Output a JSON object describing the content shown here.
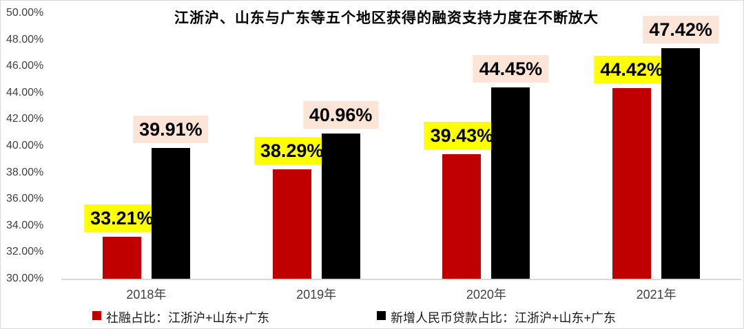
{
  "title": "江浙沪、山东与广东等五个地区获得的融资支持力度在不断放大",
  "chart_data": {
    "type": "bar",
    "title": "江浙沪、山东与广东等五个地区获得的融资支持力度在不断放大",
    "categories": [
      "2018年",
      "2019年",
      "2020年",
      "2021年"
    ],
    "series": [
      {
        "name": "社融占比：江浙沪+山东+广东",
        "color": "#c00000",
        "label_bg": "#ffff00",
        "values": [
          33.21,
          38.29,
          39.43,
          44.42
        ],
        "labels": [
          "33.21%",
          "38.29%",
          "39.43%",
          "44.42%"
        ]
      },
      {
        "name": "新增人民币贷款占比：江浙沪+山东+广东",
        "color": "#000000",
        "label_bg": "#fce4d6",
        "values": [
          39.91,
          40.96,
          44.45,
          47.42
        ],
        "labels": [
          "39.91%",
          "40.96%",
          "44.45%",
          "47.42%"
        ]
      }
    ],
    "ylim": [
      30,
      50
    ],
    "ytick_step": 2,
    "yticks": [
      "50.00%",
      "48.00%",
      "46.00%",
      "44.00%",
      "42.00%",
      "40.00%",
      "38.00%",
      "36.00%",
      "34.00%",
      "32.00%",
      "30.00%"
    ],
    "grid": false,
    "legend_position": "bottom",
    "axis_color": "#d9d9d9",
    "tick_label_color": "#404040"
  },
  "legend": {
    "item1": "社融占比：江浙沪+山东+广东",
    "item2": "新增人民币贷款占比：江浙沪+山东+广东"
  }
}
